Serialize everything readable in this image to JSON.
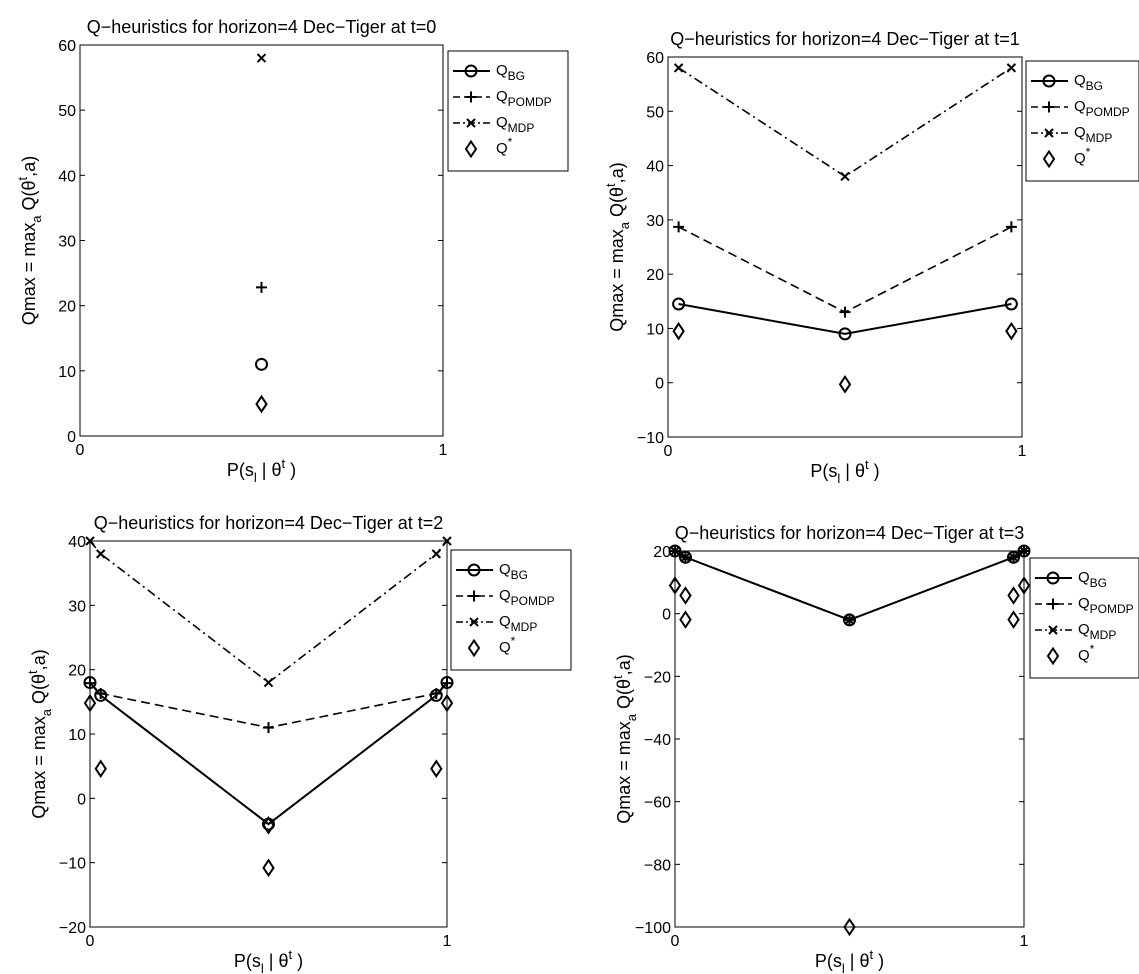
{
  "legend_entries": [
    {
      "base": "Q",
      "sub": "BG",
      "sup": "",
      "marker": "circle",
      "style": "solid"
    },
    {
      "base": "Q",
      "sub": "POMDP",
      "sup": "",
      "marker": "plus",
      "style": "dashed"
    },
    {
      "base": "Q",
      "sub": "MDP",
      "sup": "",
      "marker": "cross",
      "style": "dashdot"
    },
    {
      "base": "Q",
      "sub": "",
      "sup": "*",
      "marker": "diamond",
      "style": "none"
    }
  ],
  "ylabel": {
    "prefix": "Qmax = max",
    "sub": "a",
    "body": " Q(θ",
    "sup": "t",
    "suffix": ",a)"
  },
  "xlabel": {
    "prefix": "P(s",
    "sub": "l",
    "body": " | θ",
    "sup": "t",
    "suffix": " )"
  },
  "chart_data": [
    {
      "type": "line",
      "title": "Q−heuristics for horizon=4 Dec−Tiger at t=0",
      "xlim": [
        0,
        1
      ],
      "ylim": [
        0,
        60
      ],
      "xticks": [
        0,
        1
      ],
      "xtick_labels": [
        "0",
        "1"
      ],
      "yticks": [
        0,
        10,
        20,
        30,
        40,
        50,
        60
      ],
      "ytick_labels": [
        "0",
        "10",
        "20",
        "30",
        "40",
        "50",
        "60"
      ],
      "grid": false,
      "legend_position": "outside-right-top",
      "series": [
        {
          "key": "QBG",
          "x": [
            0.5
          ],
          "y": [
            11
          ]
        },
        {
          "key": "QPOMDP",
          "x": [
            0.5
          ],
          "y": [
            22.8
          ]
        },
        {
          "key": "QMDP",
          "x": [
            0.5
          ],
          "y": [
            58
          ]
        },
        {
          "key": "Qstar",
          "x": [
            0.5
          ],
          "y": [
            4.9
          ]
        }
      ]
    },
    {
      "type": "line",
      "title": "Q−heuristics for horizon=4 Dec−Tiger at t=1",
      "xlim": [
        0,
        1
      ],
      "ylim": [
        -10,
        60
      ],
      "xticks": [
        0,
        1
      ],
      "xtick_labels": [
        "0",
        "1"
      ],
      "yticks": [
        -10,
        0,
        10,
        20,
        30,
        40,
        50,
        60
      ],
      "ytick_labels": [
        "−10",
        "0",
        "10",
        "20",
        "30",
        "40",
        "50",
        "60"
      ],
      "grid": false,
      "legend_position": "outside-right-top",
      "series": [
        {
          "key": "QBG",
          "x": [
            0.03,
            0.5,
            0.97
          ],
          "y": [
            14.5,
            9,
            14.5
          ]
        },
        {
          "key": "QPOMDP",
          "x": [
            0.03,
            0.5,
            0.97
          ],
          "y": [
            28.7,
            13,
            28.7
          ]
        },
        {
          "key": "QMDP",
          "x": [
            0.03,
            0.5,
            0.97
          ],
          "y": [
            58,
            38,
            58
          ]
        },
        {
          "key": "Qstar",
          "x": [
            0.03,
            0.5,
            0.97
          ],
          "y": [
            9.5,
            -0.3,
            9.5
          ]
        }
      ]
    },
    {
      "type": "line",
      "title": "Q−heuristics for horizon=4 Dec−Tiger at t=2",
      "xlim": [
        0,
        1
      ],
      "ylim": [
        -20,
        40
      ],
      "xticks": [
        0,
        1
      ],
      "xtick_labels": [
        "0",
        "1"
      ],
      "yticks": [
        -20,
        -10,
        0,
        10,
        20,
        30,
        40
      ],
      "ytick_labels": [
        "−20",
        "−10",
        "0",
        "10",
        "20",
        "30",
        "40"
      ],
      "grid": false,
      "legend_position": "outside-right-top",
      "series": [
        {
          "key": "QBG",
          "x": [
            0,
            0.03,
            0.5,
            0.97,
            1
          ],
          "y": [
            18,
            16,
            -4,
            16,
            18
          ]
        },
        {
          "key": "QPOMDP",
          "x": [
            0,
            0.03,
            0.5,
            0.97,
            1
          ],
          "y": [
            17.9,
            16.3,
            11,
            16.3,
            17.9
          ]
        },
        {
          "key": "QMDP",
          "x": [
            0,
            0.03,
            0.5,
            0.97,
            1
          ],
          "y": [
            40,
            38,
            18,
            38,
            40
          ]
        },
        {
          "key": "Qstar",
          "x": [
            0,
            0.03,
            0.5,
            0.5,
            0.97,
            1
          ],
          "y": [
            14.8,
            4.6,
            -4.2,
            -10.8,
            4.6,
            14.8
          ]
        }
      ]
    },
    {
      "type": "line",
      "title": "Q−heuristics for horizon=4 Dec−Tiger at t=3",
      "xlim": [
        0,
        1
      ],
      "ylim": [
        -100,
        20
      ],
      "xticks": [
        0,
        1
      ],
      "xtick_labels": [
        "0",
        "1"
      ],
      "yticks": [
        -100,
        -80,
        -60,
        -40,
        -20,
        0,
        20
      ],
      "ytick_labels": [
        "−100",
        "−80",
        "−60",
        "−40",
        "−20",
        "0",
        "20"
      ],
      "grid": false,
      "legend_position": "outside-right-top",
      "series": [
        {
          "key": "QBG",
          "x": [
            0,
            0.03,
            0.5,
            0.97,
            1
          ],
          "y": [
            20,
            18,
            -2,
            18,
            20
          ]
        },
        {
          "key": "QPOMDP",
          "x": [
            0,
            0.03,
            0.5,
            0.97,
            1
          ],
          "y": [
            20,
            18,
            -2,
            18,
            20
          ]
        },
        {
          "key": "QMDP",
          "x": [
            0,
            0.03,
            0.5,
            0.97,
            1
          ],
          "y": [
            20,
            18,
            -2,
            18,
            20
          ]
        },
        {
          "key": "Qstar",
          "x": [
            0,
            0.03,
            0.03,
            0.5,
            0.97,
            0.97,
            1
          ],
          "y": [
            9,
            5.8,
            -1.9,
            -100,
            5.8,
            -1.9,
            9
          ]
        }
      ]
    }
  ]
}
